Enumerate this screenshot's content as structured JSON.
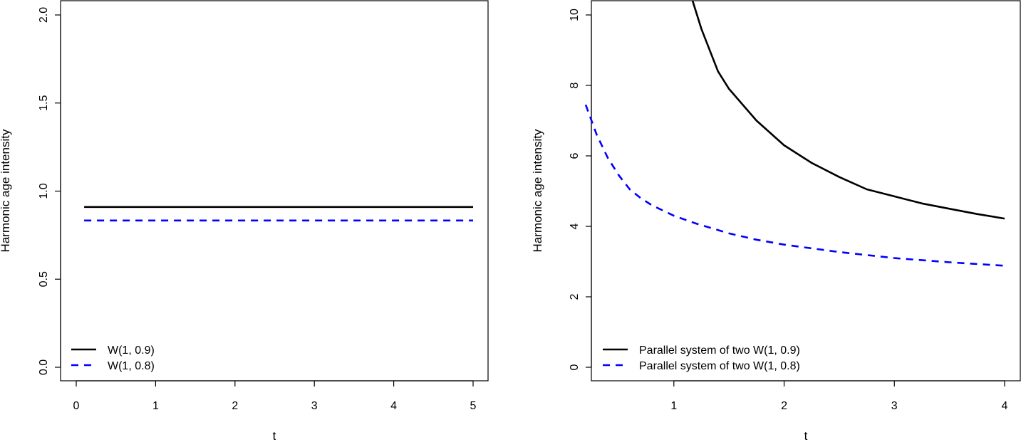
{
  "chart_data": [
    {
      "type": "line",
      "title": "",
      "xlabel": "t",
      "ylabel": "Harmonic age intensity",
      "xlim": [
        0,
        5
      ],
      "ylim": [
        0,
        2
      ],
      "xticks": [
        "0",
        "1",
        "2",
        "3",
        "4",
        "5"
      ],
      "yticks": [
        "0.0",
        "0.5",
        "1.0",
        "1.5",
        "2.0"
      ],
      "legend_position": "bottom-left",
      "series": [
        {
          "name": "W(1, 0.9)",
          "color": "#000000",
          "dash": "solid",
          "x": [
            0.1,
            1,
            2,
            3,
            4,
            5
          ],
          "y": [
            0.91,
            0.91,
            0.91,
            0.91,
            0.91,
            0.91
          ]
        },
        {
          "name": "W(1, 0.8)",
          "color": "#0000ff",
          "dash": "dashed",
          "x": [
            0.1,
            1,
            2,
            3,
            4,
            5
          ],
          "y": [
            0.833,
            0.833,
            0.833,
            0.833,
            0.833,
            0.833
          ]
        }
      ]
    },
    {
      "type": "line",
      "title": "",
      "xlabel": "t",
      "ylabel": "Harmonic age intensity",
      "xlim": [
        0.2,
        4
      ],
      "ylim": [
        0,
        10
      ],
      "xticks": [
        "1",
        "2",
        "3",
        "4"
      ],
      "yticks": [
        "0",
        "2",
        "4",
        "6",
        "8",
        "10"
      ],
      "legend_position": "bottom-left",
      "series": [
        {
          "name": "Parallel system of two W(1, 0.9)",
          "color": "#000000",
          "dash": "solid",
          "x": [
            1.17,
            1.25,
            1.4,
            1.5,
            1.75,
            2.0,
            2.25,
            2.5,
            2.75,
            3.0,
            3.25,
            3.5,
            3.75,
            4.0
          ],
          "y": [
            10.4,
            9.6,
            8.4,
            7.9,
            7.0,
            6.3,
            5.8,
            5.4,
            5.05,
            4.85,
            4.65,
            4.5,
            4.35,
            4.22
          ]
        },
        {
          "name": "Parallel system of two W(1, 0.8)",
          "color": "#0000ff",
          "dash": "dashed",
          "x": [
            0.2,
            0.3,
            0.4,
            0.5,
            0.6,
            0.7,
            0.8,
            1.0,
            1.2,
            1.5,
            1.75,
            2.0,
            2.5,
            3.0,
            3.5,
            4.0
          ],
          "y": [
            7.45,
            6.6,
            5.95,
            5.45,
            5.05,
            4.8,
            4.6,
            4.3,
            4.08,
            3.8,
            3.62,
            3.48,
            3.27,
            3.1,
            2.98,
            2.88
          ]
        }
      ]
    }
  ]
}
